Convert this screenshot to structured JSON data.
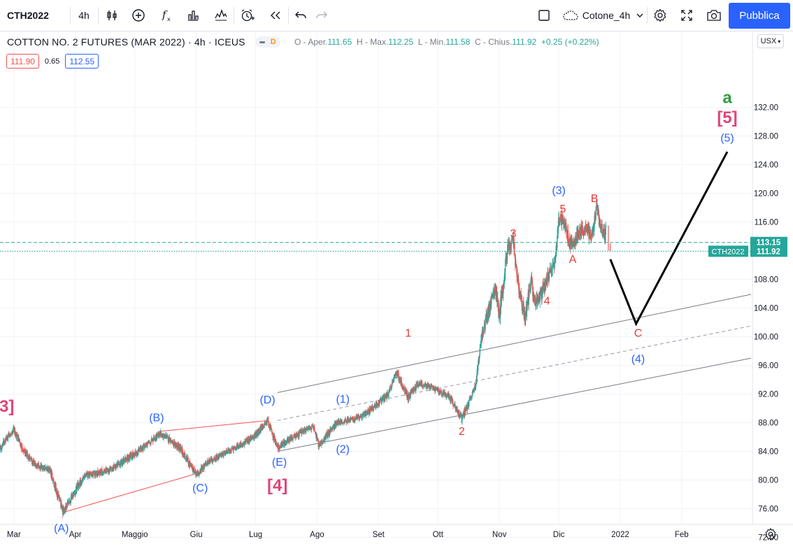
{
  "toolbar": {
    "symbol": "CTH2022",
    "interval": "4h",
    "layout_name": "Cotone_4h",
    "publish_label": "Pubblica"
  },
  "legend": {
    "title": "COTTON NO. 2 FUTURES (MAR 2022) · 4h · ICEUS",
    "badge_letter": "D",
    "ohlc": {
      "open_label": "O - Aper.",
      "open": "111.65",
      "high_label": "H - Max.",
      "high": "112.25",
      "low_label": "L - Min.",
      "low": "111.58",
      "close_label": "C - Chius.",
      "close": "111.92",
      "change": "+0.25 (+0.22%)"
    },
    "bid": "111.90",
    "spread": "0.65",
    "ask": "112.55"
  },
  "currency": "USX",
  "colors": {
    "up": "#26a69a",
    "down": "#ef5350",
    "wave_red": "#e53935",
    "wave_blue": "#2962ff",
    "wave_pink": "#e0457b",
    "wave_green": "#2e9e3e",
    "accent": "#2962ff",
    "price_tag": "#26a69a"
  },
  "chart_data": {
    "type": "candlestick",
    "y_axis": {
      "range": [
        69.5,
        136
      ],
      "ticks": [
        "72.00",
        "76.00",
        "80.00",
        "84.00",
        "88.00",
        "92.00",
        "96.00",
        "100.00",
        "104.00",
        "108.00",
        "112.00",
        "116.00",
        "120.00",
        "124.00",
        "128.00",
        "132.00"
      ]
    },
    "x_axis": {
      "labels": [
        "Mar",
        "Apr",
        "Maggio",
        "Giu",
        "Lug",
        "Ago",
        "Set",
        "Ott",
        "Nov",
        "Dic",
        "2022",
        "Feb"
      ],
      "range": [
        "2021-02-22",
        "2022-03-08"
      ]
    },
    "price_path": [
      [
        "2021-02-22",
        84.5
      ],
      [
        "2021-03-01",
        87.0
      ],
      [
        "2021-03-05",
        84.5
      ],
      [
        "2021-03-12",
        82.0
      ],
      [
        "2021-03-19",
        81.5
      ],
      [
        "2021-03-26",
        75.5
      ],
      [
        "2021-04-05",
        80.5
      ],
      [
        "2021-04-19",
        81.5
      ],
      [
        "2021-05-03",
        84.0
      ],
      [
        "2021-05-14",
        86.5
      ],
      [
        "2021-05-24",
        84.5
      ],
      [
        "2021-06-01",
        80.7
      ],
      [
        "2021-06-07",
        82.5
      ],
      [
        "2021-06-14",
        83.5
      ],
      [
        "2021-06-21",
        84.5
      ],
      [
        "2021-06-30",
        86.0
      ],
      [
        "2021-07-07",
        88.3
      ],
      [
        "2021-07-12",
        84.5
      ],
      [
        "2021-07-20",
        86.0
      ],
      [
        "2021-07-30",
        87.5
      ],
      [
        "2021-08-02",
        84.8
      ],
      [
        "2021-08-11",
        88.0
      ],
      [
        "2021-08-20",
        88.5
      ],
      [
        "2021-08-27",
        89.5
      ],
      [
        "2021-09-06",
        92.0
      ],
      [
        "2021-09-10",
        95.0
      ],
      [
        "2021-09-16",
        91.5
      ],
      [
        "2021-09-21",
        93.5
      ],
      [
        "2021-09-27",
        93.0
      ],
      [
        "2021-10-01",
        92.5
      ],
      [
        "2021-10-07",
        91.5
      ],
      [
        "2021-10-13",
        88.5
      ],
      [
        "2021-10-20",
        93.0
      ],
      [
        "2021-10-23",
        100.0
      ],
      [
        "2021-10-27",
        104.0
      ],
      [
        "2021-10-30",
        107.0
      ],
      [
        "2021-11-01",
        103.0
      ],
      [
        "2021-11-05",
        112.0
      ],
      [
        "2021-11-08",
        113.5
      ],
      [
        "2021-11-10",
        108.0
      ],
      [
        "2021-11-14",
        102.5
      ],
      [
        "2021-11-17",
        108.0
      ],
      [
        "2021-11-19",
        104.5
      ],
      [
        "2021-11-23",
        106.5
      ],
      [
        "2021-11-25",
        108.0
      ],
      [
        "2021-11-29",
        110.0
      ],
      [
        "2021-12-01",
        116.0
      ],
      [
        "2021-12-03",
        116.5
      ],
      [
        "2021-12-06",
        113.5
      ],
      [
        "2021-12-08",
        112.5
      ],
      [
        "2021-12-11",
        114.5
      ],
      [
        "2021-12-15",
        115.0
      ],
      [
        "2021-12-18",
        114.0
      ],
      [
        "2021-12-20",
        118.0
      ],
      [
        "2021-12-22",
        115.5
      ],
      [
        "2021-12-24",
        114.0
      ],
      [
        "2021-12-25",
        115.5
      ]
    ],
    "last_bars": [
      [
        "2021-12-26",
        115.5,
        112.0
      ],
      [
        "2021-12-27",
        113.0,
        111.92
      ]
    ],
    "price_lines": [
      {
        "value": 113.15,
        "label": "113.15",
        "style": "dashed",
        "color": "#26a69a"
      },
      {
        "value": 111.92,
        "label": "111.92",
        "tag": "CTH2022",
        "style": "dotted",
        "color": "#26a69a"
      }
    ],
    "trendlines": [
      {
        "name": "triangle-upper",
        "color": "#ef5350",
        "points": [
          [
            "2021-05-14",
            86.8
          ],
          [
            "2021-07-07",
            88.3
          ]
        ]
      },
      {
        "name": "triangle-lower",
        "color": "#ef5350",
        "points": [
          [
            "2021-03-26",
            75.5
          ],
          [
            "2021-06-05",
            81.2
          ]
        ]
      },
      {
        "name": "channel-upper",
        "color": "#787b86",
        "style": "solid",
        "points": [
          [
            "2021-07-12",
            92.2
          ],
          [
            "2022-03-08",
            105.9
          ]
        ]
      },
      {
        "name": "channel-mid",
        "color": "#9598a1",
        "style": "dashed",
        "points": [
          [
            "2021-07-12",
            88.3
          ],
          [
            "2022-03-08",
            101.5
          ]
        ]
      },
      {
        "name": "channel-lower",
        "color": "#787b86",
        "style": "solid",
        "points": [
          [
            "2021-07-12",
            84.0
          ],
          [
            "2022-03-08",
            97.0
          ]
        ]
      }
    ],
    "projection": {
      "color": "#000000",
      "points": [
        [
          "2021-12-27",
          110.8
        ],
        [
          "2022-01-09",
          101.8
        ],
        [
          "2022-02-24",
          125.8
        ]
      ]
    },
    "wave_labels": [
      {
        "text": "[3]",
        "x": "2021-02-24",
        "y": 89.5,
        "color": "#e0457b",
        "size": "large"
      },
      {
        "text": "(A)",
        "x": "2021-03-25",
        "y": 72.8,
        "color": "#2962ff",
        "size": "medium"
      },
      {
        "text": "(B)",
        "x": "2021-05-12",
        "y": 88.2,
        "color": "#2962ff",
        "size": "medium"
      },
      {
        "text": "(C)",
        "x": "2021-06-03",
        "y": 78.4,
        "color": "#2962ff",
        "size": "medium"
      },
      {
        "text": "(D)",
        "x": "2021-07-07",
        "y": 90.7,
        "color": "#2962ff",
        "size": "medium"
      },
      {
        "text": "(E)",
        "x": "2021-07-13",
        "y": 82.0,
        "color": "#2962ff",
        "size": "medium"
      },
      {
        "text": "[4]",
        "x": "2021-07-12",
        "y": 78.5,
        "color": "#e0457b",
        "size": "large"
      },
      {
        "text": "(1)",
        "x": "2021-08-14",
        "y": 90.8,
        "color": "#2962ff",
        "size": "medium"
      },
      {
        "text": "(2)",
        "x": "2021-08-14",
        "y": 83.8,
        "color": "#2962ff",
        "size": "medium"
      },
      {
        "text": "1",
        "x": "2021-09-16",
        "y": 100.0,
        "color": "#e53935",
        "size": "medium"
      },
      {
        "text": "2",
        "x": "2021-10-13",
        "y": 86.3,
        "color": "#e53935",
        "size": "medium"
      },
      {
        "text": "3",
        "x": "2021-11-08",
        "y": 113.9,
        "color": "#e53935",
        "size": "medium"
      },
      {
        "text": "4",
        "x": "2021-11-25",
        "y": 104.5,
        "color": "#e53935",
        "size": "medium"
      },
      {
        "text": "(3)",
        "x": "2021-12-01",
        "y": 119.9,
        "color": "#2962ff",
        "size": "medium"
      },
      {
        "text": "5",
        "x": "2021-12-03",
        "y": 117.3,
        "color": "#e53935",
        "size": "medium"
      },
      {
        "text": "A",
        "x": "2021-12-08",
        "y": 110.3,
        "color": "#e53935",
        "size": "medium"
      },
      {
        "text": "B",
        "x": "2021-12-19",
        "y": 118.8,
        "color": "#e53935",
        "size": "medium"
      },
      {
        "text": "C",
        "x": "2022-01-10",
        "y": 100.0,
        "color": "#e53935",
        "size": "medium"
      },
      {
        "text": "(4)",
        "x": "2022-01-10",
        "y": 96.4,
        "color": "#2962ff",
        "size": "medium"
      },
      {
        "text": "(5)",
        "x": "2022-02-24",
        "y": 127.2,
        "color": "#2962ff",
        "size": "medium"
      },
      {
        "text": "[5]",
        "x": "2022-02-24",
        "y": 129.8,
        "color": "#e0457b",
        "size": "large"
      },
      {
        "text": "a",
        "x": "2022-02-24",
        "y": 132.6,
        "color": "#2e9e3e",
        "size": "large"
      }
    ]
  }
}
